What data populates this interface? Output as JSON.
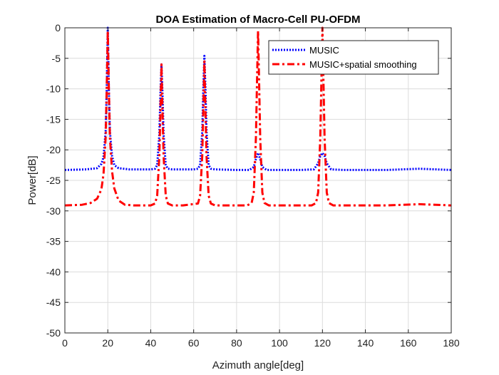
{
  "chart_data": {
    "type": "line",
    "title": "DOA Estimation of Macro-Cell PU-OFDM",
    "xlabel": "Azimuth angle[deg]",
    "ylabel": "Power[dB]",
    "xlim": [
      0,
      180
    ],
    "ylim": [
      -50,
      0
    ],
    "xticks": [
      0,
      20,
      40,
      60,
      80,
      100,
      120,
      140,
      160,
      180
    ],
    "yticks": [
      0,
      -5,
      -10,
      -15,
      -20,
      -25,
      -30,
      -35,
      -40,
      -45,
      -50
    ],
    "grid": true,
    "legend_position": "top-right",
    "series": [
      {
        "name": "MUSIC",
        "color": "#0000ff",
        "style": "dotted",
        "x": [
          0,
          10,
          15,
          17,
          18,
          19,
          19.5,
          20,
          20.5,
          21,
          22,
          23,
          25,
          30,
          40,
          42,
          43,
          44,
          44.5,
          45,
          45.5,
          46,
          47,
          48,
          50,
          55,
          60,
          62,
          63,
          64,
          64.5,
          65,
          65.5,
          66,
          67,
          68,
          70,
          80,
          86,
          88,
          89,
          90,
          91,
          92,
          94,
          100,
          110,
          116,
          118,
          119,
          120,
          121,
          122,
          124,
          130,
          150,
          165,
          180
        ],
        "y": [
          -23.3,
          -23.2,
          -23.0,
          -22.3,
          -21.2,
          -17.0,
          -10.0,
          0,
          -10.0,
          -17.0,
          -21.0,
          -22.5,
          -23.0,
          -23.2,
          -23.2,
          -23.1,
          -22.5,
          -17.5,
          -11.0,
          -6.0,
          -11.0,
          -17.5,
          -22.5,
          -23.1,
          -23.2,
          -23.2,
          -23.2,
          -23.1,
          -22.5,
          -17.0,
          -10.0,
          -4.6,
          -10.0,
          -17.0,
          -22.5,
          -23.1,
          -23.2,
          -23.3,
          -23.3,
          -22.8,
          -21.5,
          -20.5,
          -21.5,
          -22.8,
          -23.3,
          -23.3,
          -23.3,
          -23.2,
          -22.2,
          -21.0,
          -20.5,
          -21.0,
          -22.2,
          -23.2,
          -23.3,
          -23.3,
          -23.1,
          -23.3
        ]
      },
      {
        "name": "MUSIC+spatial smoothing",
        "color": "#ff0000",
        "style": "dashdot",
        "x": [
          0,
          8,
          12,
          15,
          17,
          18,
          19,
          19.5,
          20,
          20.5,
          21,
          22,
          23,
          25,
          28,
          32,
          40,
          42,
          43,
          44,
          44.5,
          45,
          45.5,
          46,
          47,
          48,
          50,
          55,
          62,
          63,
          64,
          64.5,
          65,
          65.5,
          66,
          67,
          68,
          70,
          85,
          87,
          88,
          89,
          89.5,
          90,
          90.5,
          91,
          92,
          93,
          95,
          115,
          117,
          118,
          119,
          119.5,
          120,
          120.5,
          121,
          122,
          123,
          125,
          150,
          165,
          180
        ],
        "y": [
          -29.1,
          -29.0,
          -28.7,
          -28.0,
          -26.5,
          -24.0,
          -18.0,
          -10.0,
          -0.5,
          -10.0,
          -18.0,
          -23.5,
          -26.3,
          -28.3,
          -29.0,
          -29.1,
          -29.1,
          -28.8,
          -27.5,
          -21.0,
          -14.0,
          -6.0,
          -14.0,
          -21.0,
          -27.5,
          -28.8,
          -29.1,
          -29.1,
          -28.8,
          -27.5,
          -21.0,
          -13.5,
          -5.5,
          -13.5,
          -21.0,
          -27.5,
          -28.8,
          -29.1,
          -29.1,
          -28.7,
          -27.0,
          -18.0,
          -9.0,
          -0.5,
          -9.0,
          -18.0,
          -27.0,
          -28.7,
          -29.1,
          -29.1,
          -28.7,
          -27.0,
          -18.0,
          -9.0,
          0,
          -9.0,
          -18.0,
          -27.0,
          -28.7,
          -29.1,
          -29.1,
          -28.9,
          -29.1
        ]
      }
    ]
  }
}
